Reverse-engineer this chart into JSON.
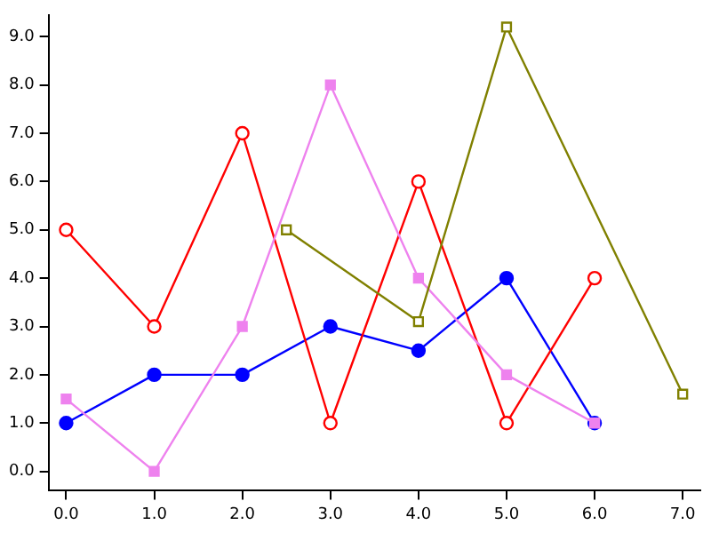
{
  "chart_data": {
    "type": "line",
    "marker": "circle",
    "grid": false,
    "legend": false,
    "xlim": [
      -0.2,
      7.2
    ],
    "ylim": [
      -0.4,
      9.45
    ],
    "xticks": [
      {
        "value": 0,
        "label": "0.0"
      },
      {
        "value": 1,
        "label": "1.0"
      },
      {
        "value": 2,
        "label": "2.0"
      },
      {
        "value": 3,
        "label": "3.0"
      },
      {
        "value": 4,
        "label": "4.0"
      },
      {
        "value": 5,
        "label": "5.0"
      },
      {
        "value": 6,
        "label": "6.0"
      },
      {
        "value": 7,
        "label": "7.0"
      }
    ],
    "yticks": [
      {
        "value": 0,
        "label": "0.0"
      },
      {
        "value": 1,
        "label": "1.0"
      },
      {
        "value": 2,
        "label": "2.0"
      },
      {
        "value": 3,
        "label": "3.0"
      },
      {
        "value": 4,
        "label": "4.0"
      },
      {
        "value": 5,
        "label": "5.0"
      },
      {
        "value": 6,
        "label": "6.0"
      },
      {
        "value": 7,
        "label": "7.0"
      },
      {
        "value": 8,
        "label": "8.0"
      },
      {
        "value": 9,
        "label": "9.0"
      }
    ],
    "series": [
      {
        "color": "#0000ff",
        "x": [
          0,
          1,
          2,
          3,
          4,
          5,
          6
        ],
        "values": [
          1,
          2,
          2,
          3,
          2.5,
          4,
          1
        ]
      },
      {
        "color": "#ff0000",
        "x": [
          0,
          1,
          2,
          3,
          4,
          5,
          6
        ],
        "values": [
          5,
          3,
          7,
          1,
          6,
          1,
          4
        ]
      },
      {
        "color": "#ee82ee",
        "marker": "square",
        "x": [
          0,
          1,
          2,
          3,
          4,
          5,
          6
        ],
        "values": [
          1.5,
          0,
          3,
          8,
          4,
          2,
          1
        ]
      },
      {
        "color": "#808000",
        "marker": "square",
        "x": [
          2.5,
          4,
          5,
          7
        ],
        "values": [
          5,
          3.1,
          9.2,
          1.6
        ]
      }
    ]
  }
}
